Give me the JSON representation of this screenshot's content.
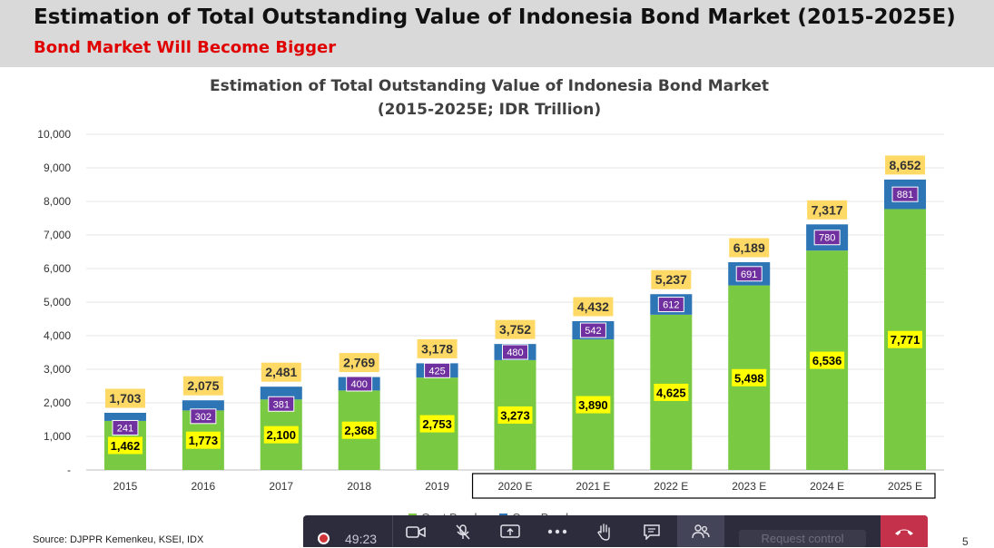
{
  "slide": {
    "title": "Estimation of Total Outstanding Value of Indonesia Bond Market (2015-2025E)",
    "subtitle": "Bond Market Will Become Bigger",
    "source": "Source: DJPPR Kemenkeu, KSEI, IDX",
    "page_number": "5"
  },
  "chart_data": {
    "type": "bar",
    "stacked": true,
    "title_lines": [
      "Estimation of Total Outstanding Value of Indonesia Bond Market",
      "(2015-2025E; IDR Trillion)"
    ],
    "categories": [
      "2015",
      "2016",
      "2017",
      "2018",
      "2019",
      "2020 E",
      "2021 E",
      "2022 E",
      "2023 E",
      "2024 E",
      "2025 E"
    ],
    "boxed_categories_from": "2020 E",
    "series": [
      {
        "name": "Govt Bond",
        "values": [
          1462,
          1773,
          2100,
          2368,
          2753,
          3273,
          3890,
          4625,
          5498,
          6536,
          7771
        ],
        "color": "#7ac943",
        "label_bg": "#ffff00"
      },
      {
        "name": "Corp Bond",
        "values": [
          241,
          302,
          381,
          400,
          425,
          480,
          542,
          612,
          691,
          780,
          881
        ],
        "color": "#2e75b6",
        "label_bg": "#7030a0"
      }
    ],
    "totals": [
      1703,
      2075,
      2481,
      2769,
      3178,
      3752,
      4432,
      5237,
      6189,
      7317,
      8652
    ],
    "total_label_bg": "#ffd966",
    "ylim": [
      0,
      10000
    ],
    "yticks": [
      "-",
      "1,000",
      "2,000",
      "3,000",
      "4,000",
      "5,000",
      "6,000",
      "7,000",
      "8,000",
      "9,000",
      "10,000"
    ],
    "grid": true,
    "legend_position": "bottom"
  },
  "toolbar": {
    "timer": "49:23",
    "request_control_label": "Request control"
  }
}
